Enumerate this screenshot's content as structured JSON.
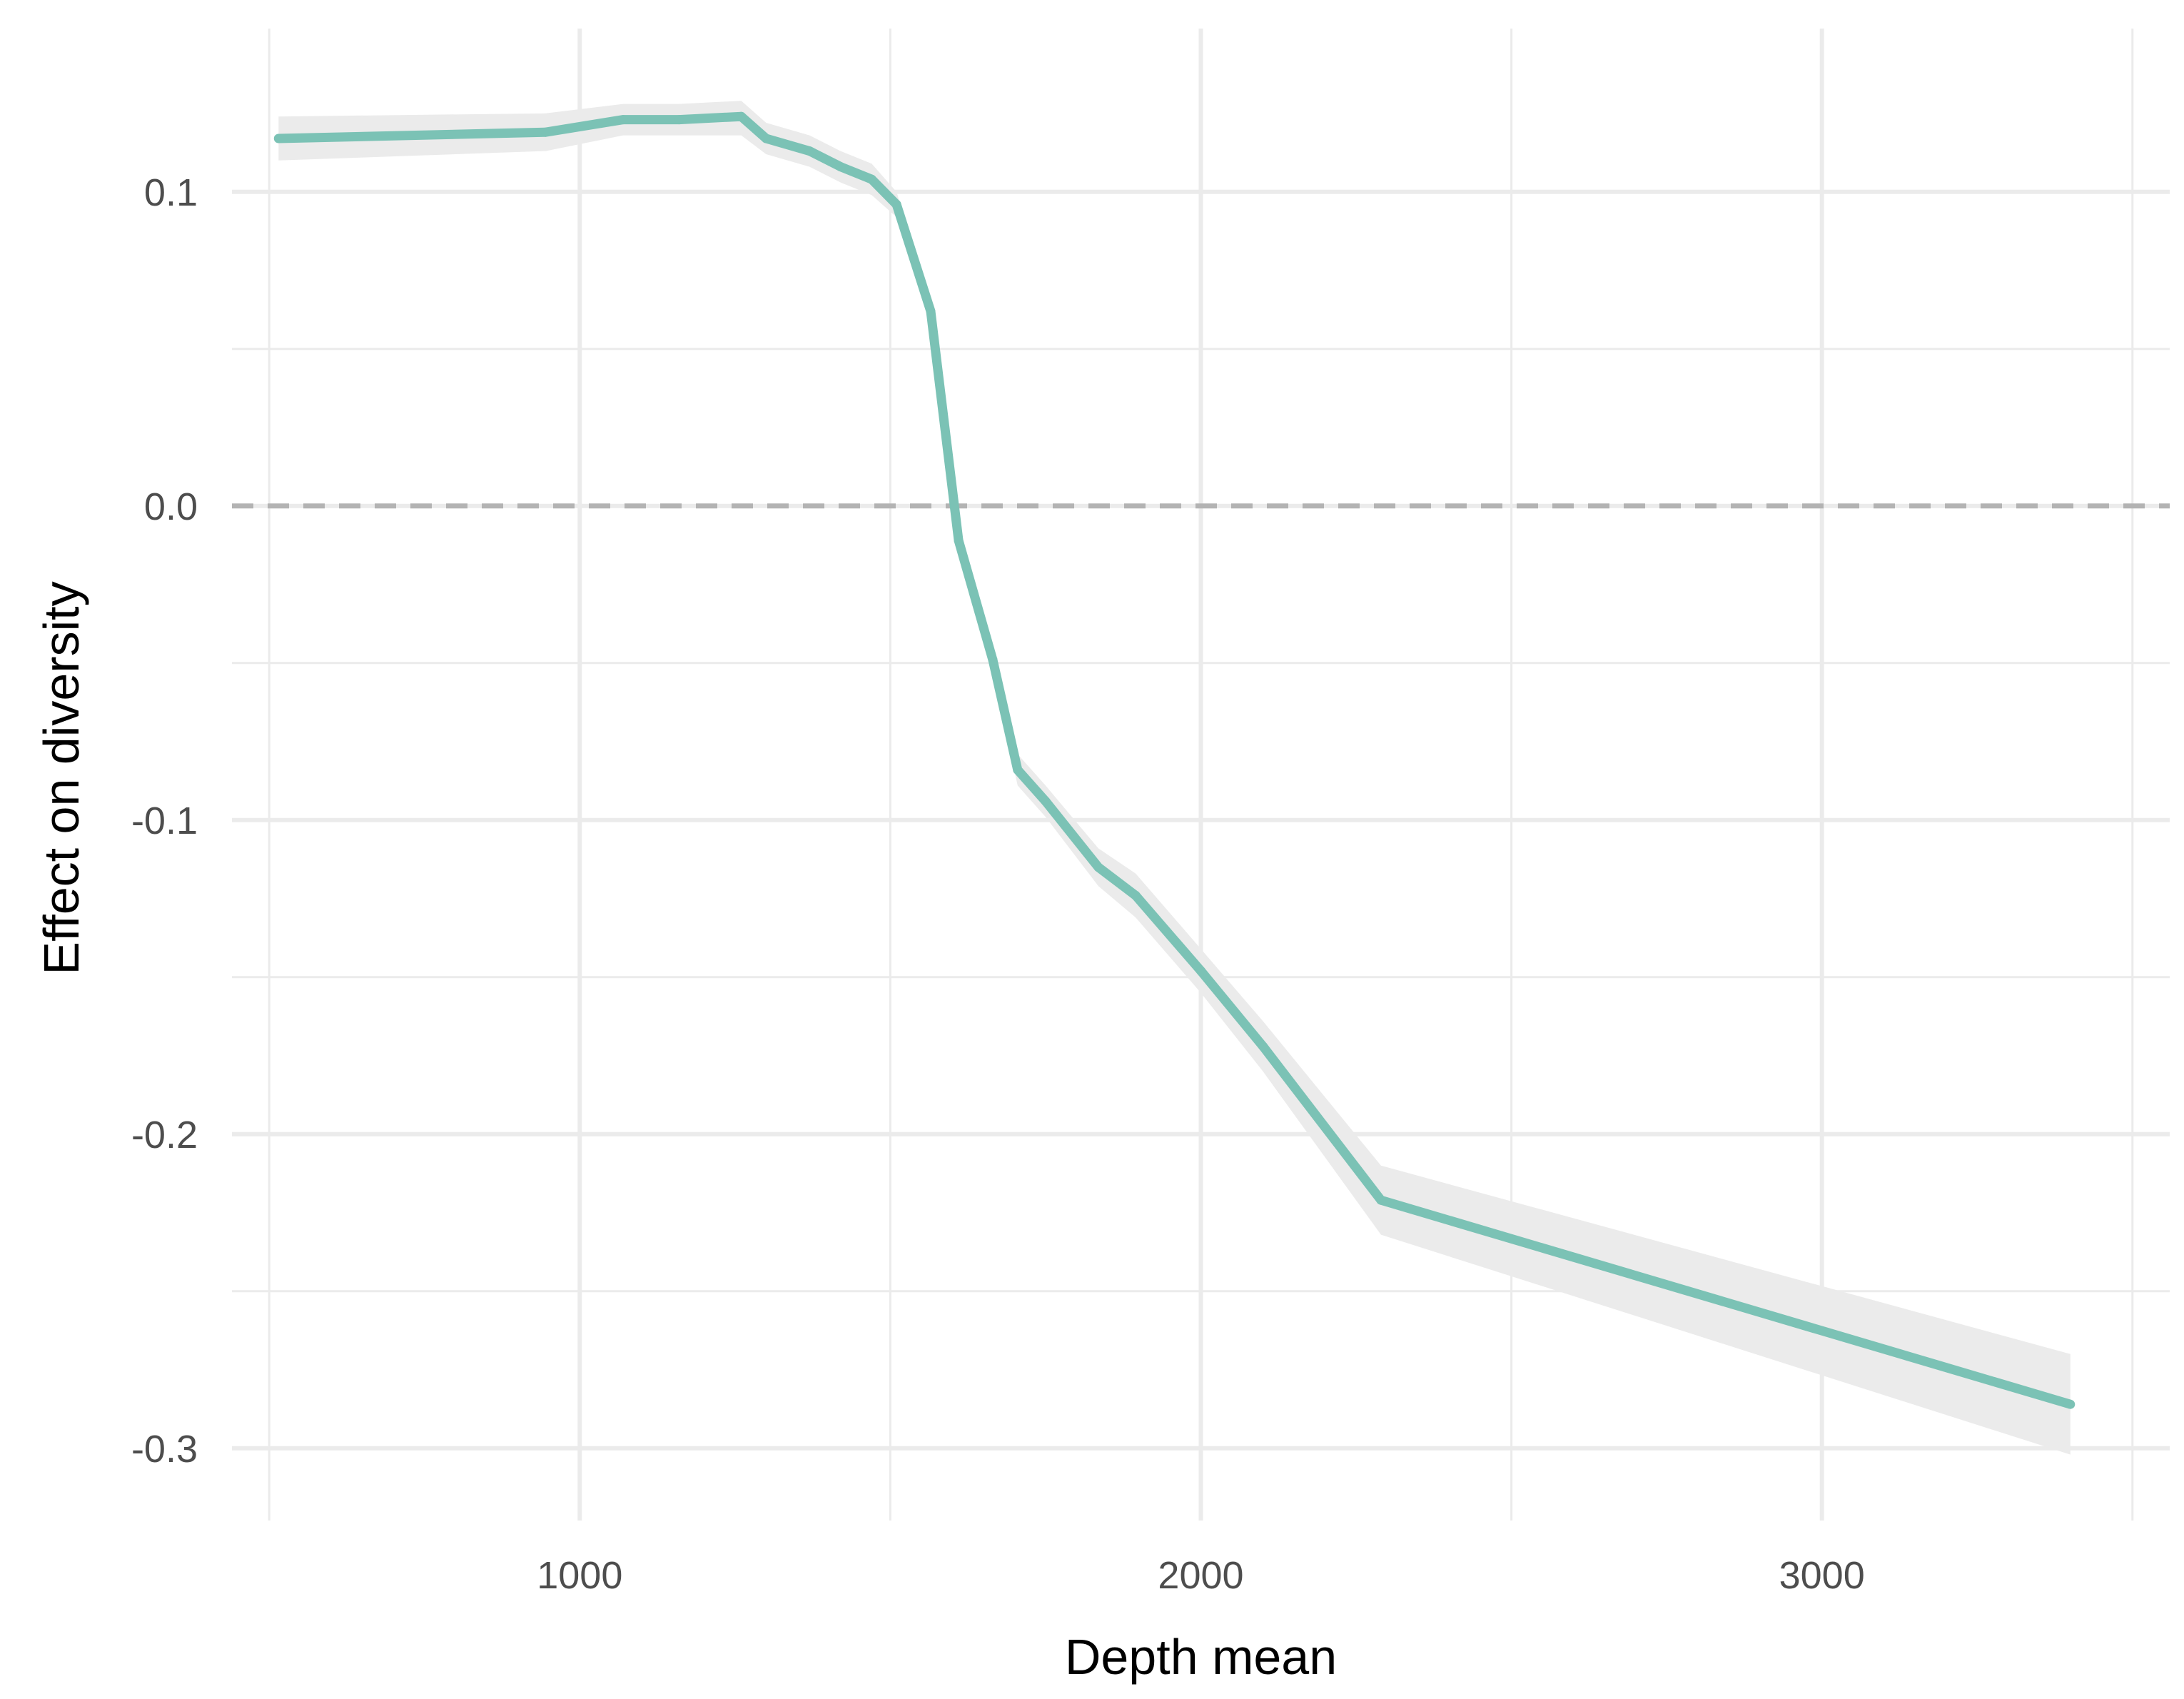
{
  "chart_data": {
    "type": "line",
    "title": "",
    "xlabel": "Depth mean",
    "ylabel": "Effect on diversity",
    "xlim": [
      440,
      3560
    ],
    "ylim": [
      -0.323,
      0.152
    ],
    "x_ticks": [
      1000,
      2000,
      3000
    ],
    "x_tick_labels": [
      "1000",
      "2000",
      "3000"
    ],
    "x_minor_ticks": [
      500,
      1500,
      2500,
      3500
    ],
    "y_ticks": [
      0.1,
      0.0,
      -0.1,
      -0.2,
      -0.3
    ],
    "y_tick_labels": [
      "0.1",
      "0.0",
      "-0.1",
      "-0.2",
      "-0.3"
    ],
    "y_minor_ticks": [
      0.05,
      -0.05,
      -0.15,
      -0.25
    ],
    "grid": true,
    "reference_line": {
      "y": 0,
      "style": "dashed",
      "color": "#b3b3b3"
    },
    "colors": {
      "line": "#7bc2b5",
      "ribbon": "#ebebeb",
      "grid": "#ebebeb"
    },
    "series": [
      {
        "x": [
          515,
          945,
          1070,
          1160,
          1260,
          1300,
          1370,
          1420,
          1470,
          1510,
          1565,
          1610,
          1665,
          1705,
          1750,
          1835,
          1895,
          2000,
          2100,
          2290,
          3400
        ],
        "y": [
          0.117,
          0.119,
          0.123,
          0.123,
          0.124,
          0.117,
          0.113,
          0.108,
          0.104,
          0.096,
          0.062,
          -0.011,
          -0.049,
          -0.084,
          -0.094,
          -0.115,
          -0.124,
          -0.148,
          -0.172,
          -0.221,
          -0.286
        ],
        "lower": [
          0.11,
          0.113,
          0.118,
          0.118,
          0.118,
          0.112,
          0.108,
          0.103,
          0.099,
          0.092,
          0.058,
          -0.015,
          -0.053,
          -0.089,
          -0.099,
          -0.121,
          -0.131,
          -0.155,
          -0.18,
          -0.232,
          -0.302
        ],
        "upper": [
          0.124,
          0.125,
          0.128,
          0.128,
          0.129,
          0.122,
          0.118,
          0.113,
          0.109,
          0.1,
          0.066,
          -0.007,
          -0.045,
          -0.079,
          -0.089,
          -0.109,
          -0.117,
          -0.141,
          -0.164,
          -0.21,
          -0.27
        ]
      }
    ]
  }
}
